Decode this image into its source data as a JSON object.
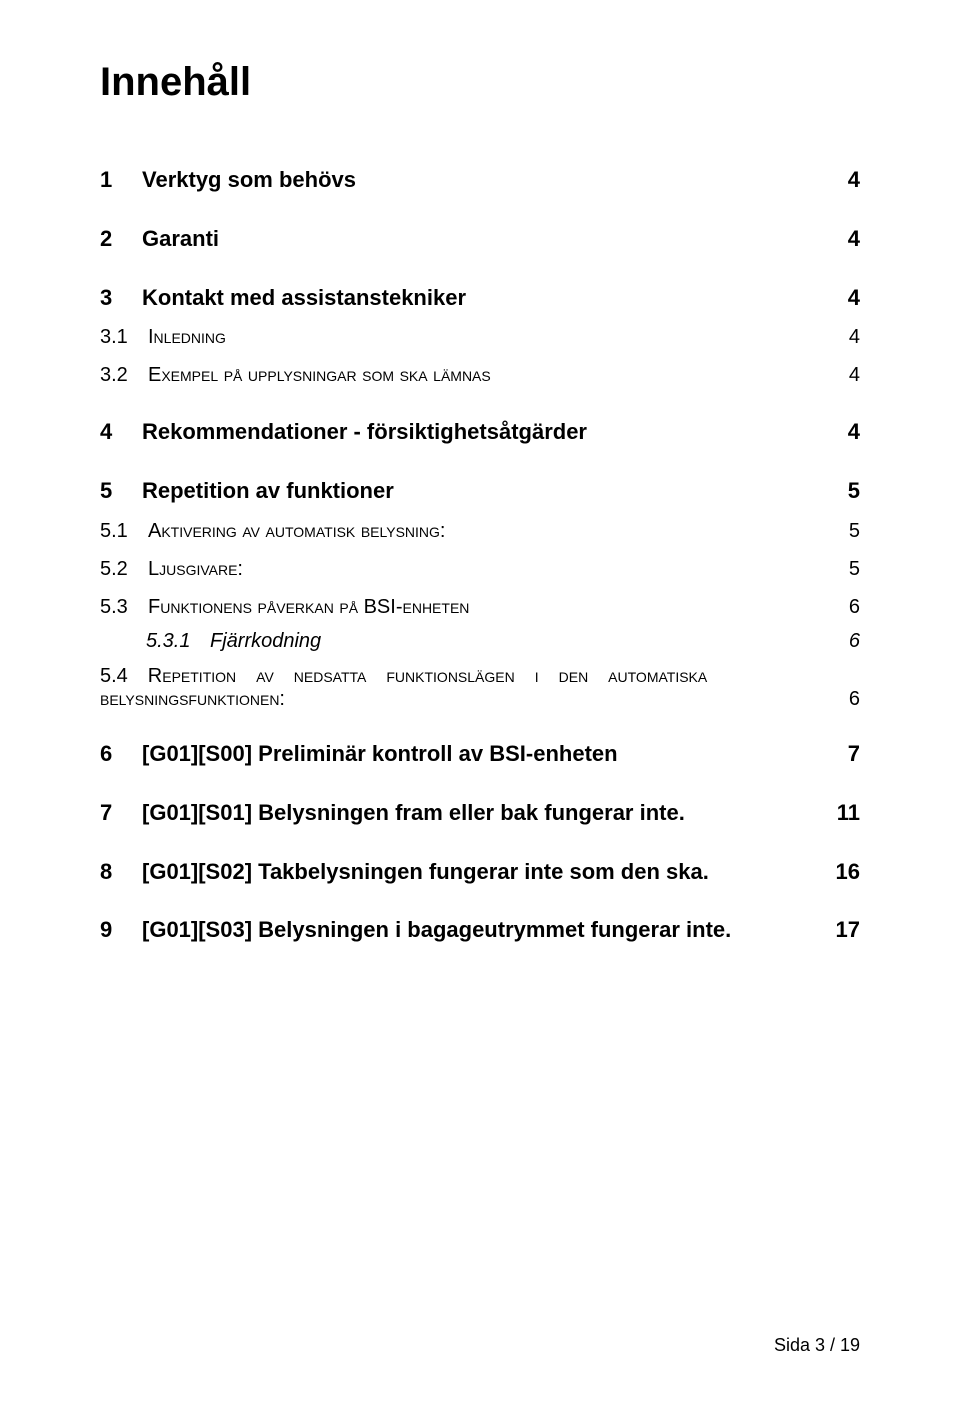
{
  "title": "Innehåll",
  "toc": {
    "i1": {
      "num": "1",
      "label": "Verktyg som behövs",
      "page": "4"
    },
    "i2": {
      "num": "2",
      "label": "Garanti",
      "page": "4"
    },
    "i3": {
      "num": "3",
      "label": "Kontakt med assistanstekniker",
      "page": "4"
    },
    "i3_1": {
      "num": "3.1",
      "label": "Inledning",
      "page": "4"
    },
    "i3_2": {
      "num": "3.2",
      "label": "Exempel på upplysningar som ska lämnas",
      "page": "4"
    },
    "i4": {
      "num": "4",
      "label": "Rekommendationer - försiktighetsåtgärder",
      "page": "4"
    },
    "i5": {
      "num": "5",
      "label": "Repetition av funktioner",
      "page": "5"
    },
    "i5_1": {
      "num": "5.1",
      "label": "Aktivering av automatisk belysning:",
      "page": "5"
    },
    "i5_2": {
      "num": "5.2",
      "label": "Ljusgivare:",
      "page": "5"
    },
    "i5_3": {
      "num": "5.3",
      "label": "Funktionens påverkan på BSI-enheten",
      "page": "6"
    },
    "i5_3_1": {
      "num": "5.3.1",
      "label": "Fjärrkodning",
      "page": "6"
    },
    "i5_4_line1": "5.4 Repetition av nedsatta funktionslägen i den automatiska",
    "i5_4_line2": {
      "label": "belysningsfunktionen:",
      "page": "6"
    },
    "i6": {
      "num": "6",
      "label": "[G01][S00] Preliminär kontroll av BSI-enheten",
      "page": "7"
    },
    "i7": {
      "num": "7",
      "label": "[G01][S01] Belysningen fram eller bak fungerar inte.",
      "page": "11"
    },
    "i8": {
      "num": "8",
      "label": "[G01][S02] Takbelysningen fungerar inte som den ska.",
      "page": "16"
    },
    "i9": {
      "num": "9",
      "label": "[G01][S03] Belysningen i bagageutrymmet fungerar inte.",
      "page": "17"
    }
  },
  "footer": "Sida 3 / 19",
  "colors": {
    "text": "#000000",
    "background": "#ffffff"
  },
  "typography": {
    "title_fontsize": 40,
    "lvl1_fontsize": 22,
    "lvl2_fontsize": 20,
    "lvl3_fontsize": 20,
    "footer_fontsize": 18
  }
}
